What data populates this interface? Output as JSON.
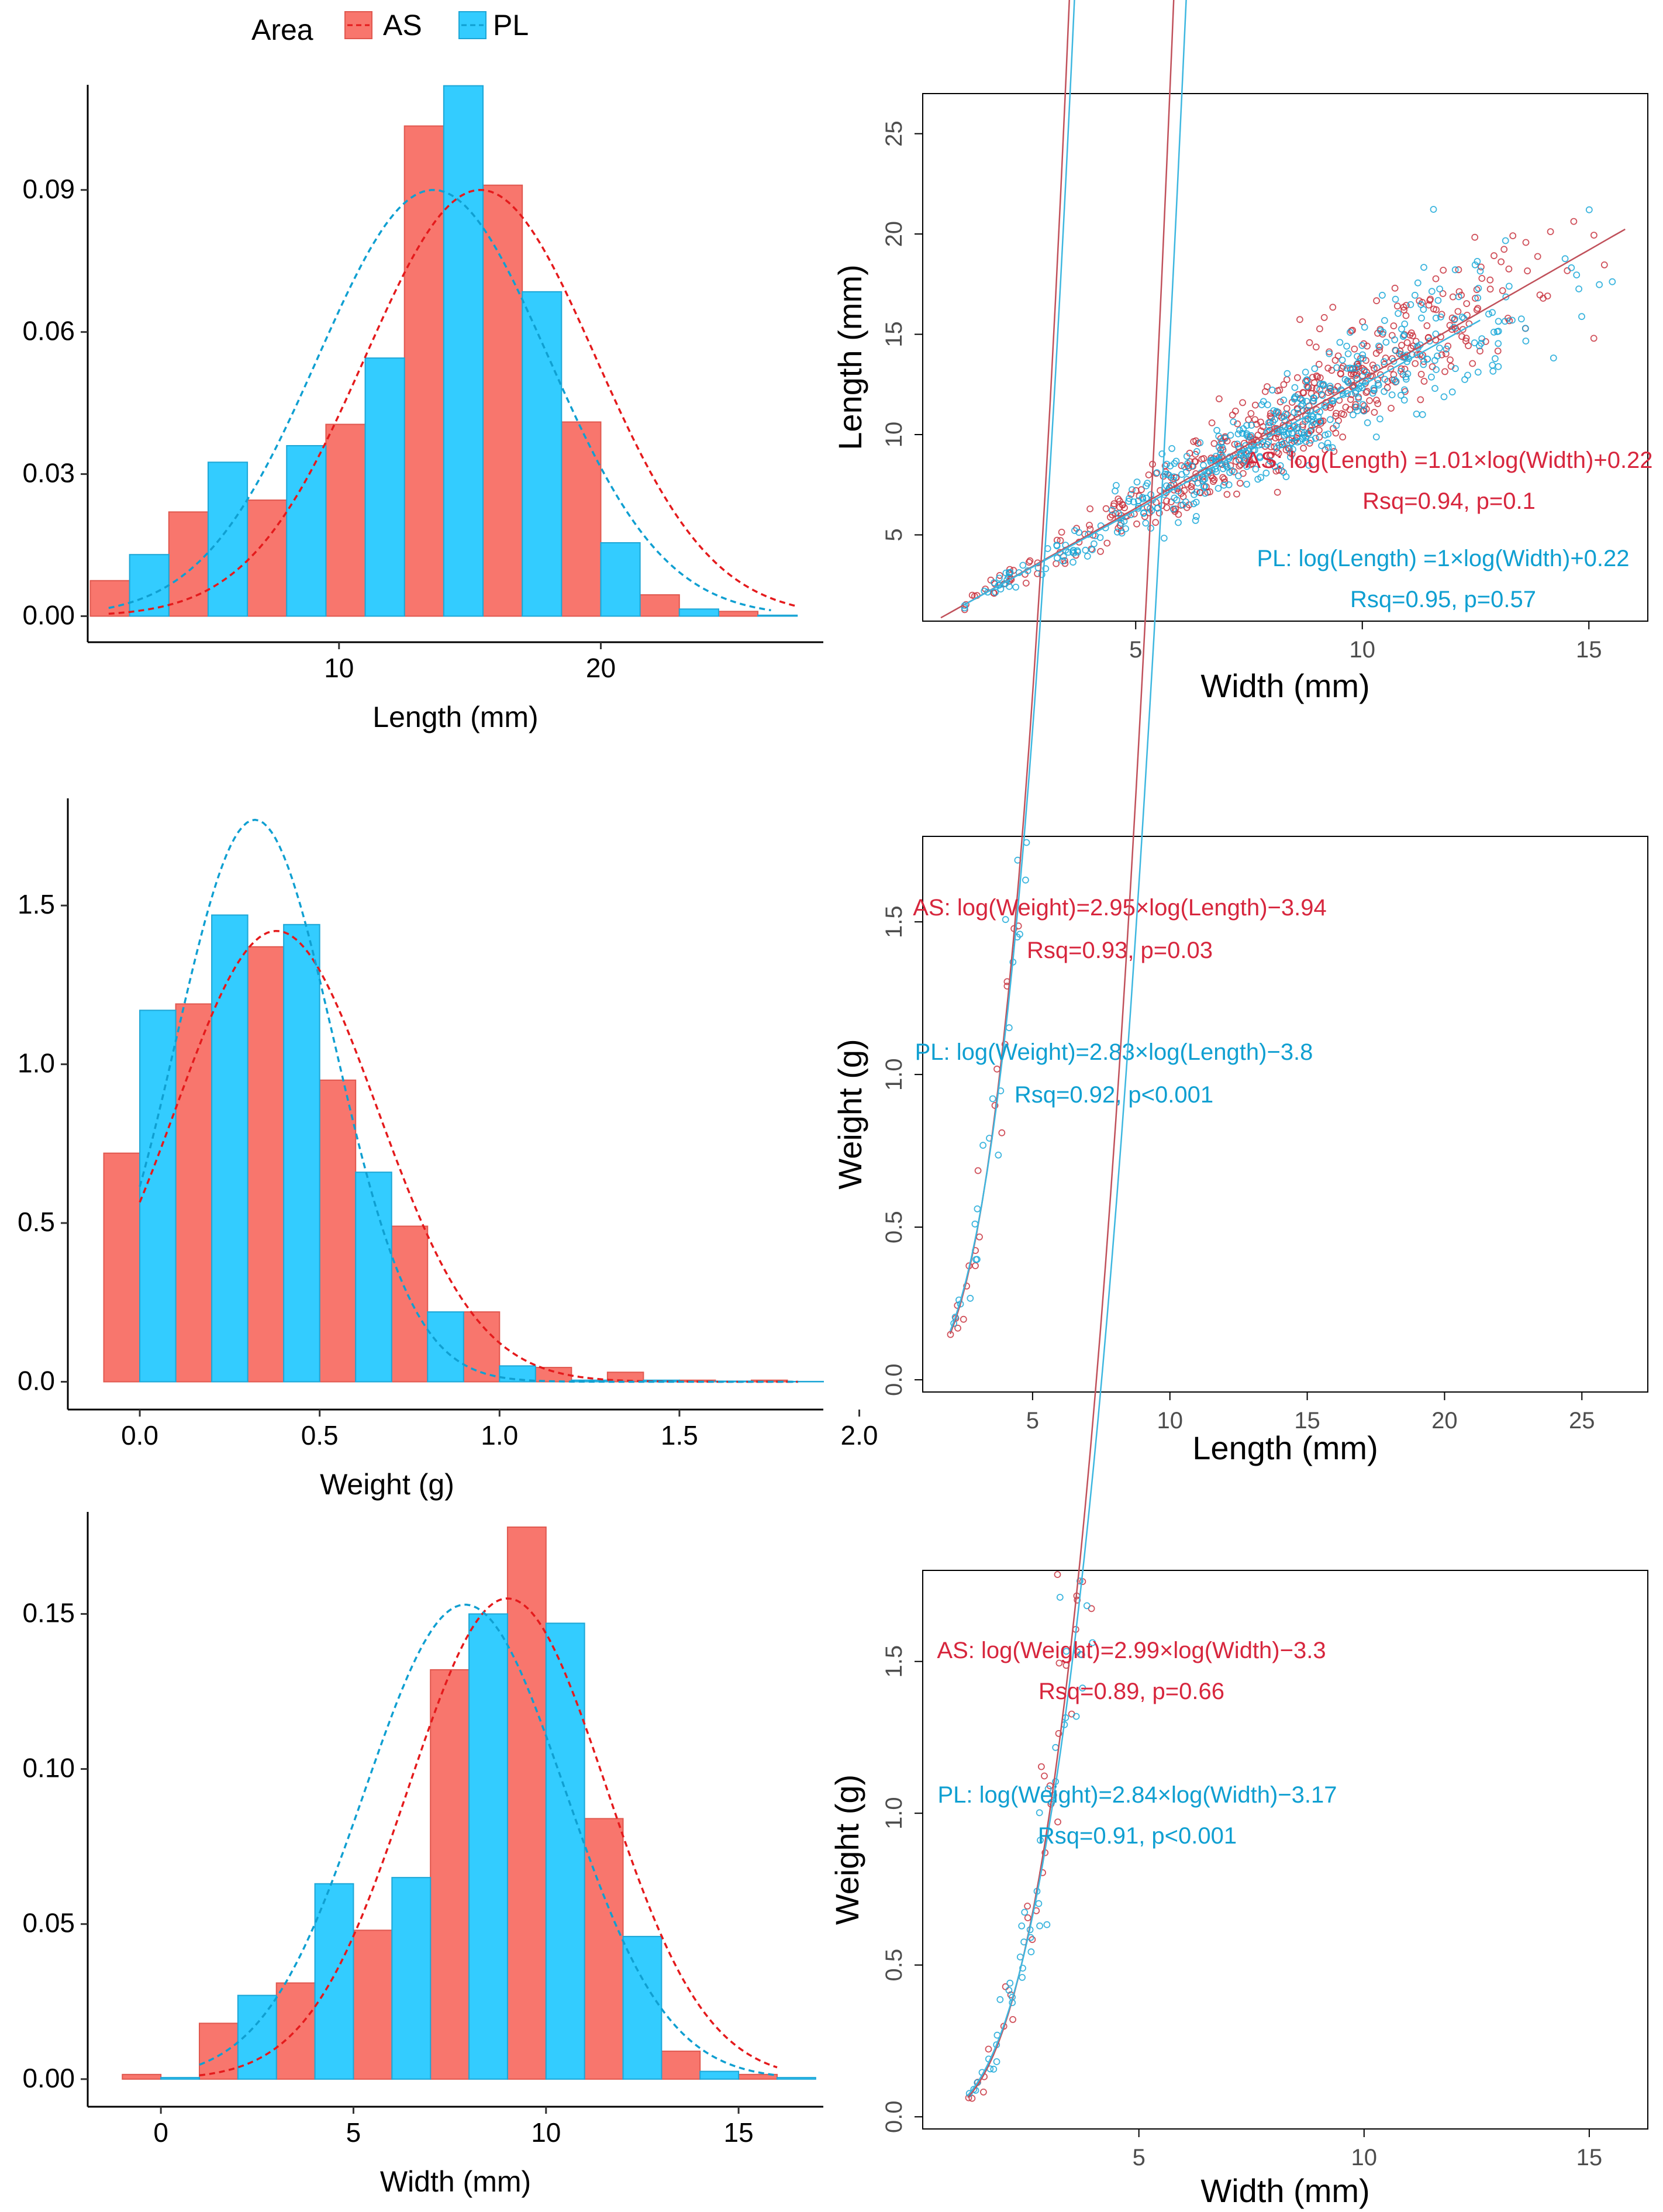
{
  "legend": {
    "title": "Area",
    "items": [
      {
        "key": "AS",
        "label": "AS",
        "fill": "#F8766D",
        "edge": "#E0584F",
        "curve": "#E41A1C"
      },
      {
        "key": "PL",
        "label": "PL",
        "fill": "#33CCFF",
        "edge": "#1DA6D6",
        "curve": "#0F9FD1"
      }
    ]
  },
  "chart_data": [
    {
      "id": "hist-length",
      "type": "bar",
      "title": "",
      "xlabel": "Length (mm)",
      "ylabel": "",
      "xlim": [
        0.4,
        28.5
      ],
      "ylim": [
        -0.0055,
        0.1122
      ],
      "xticks": [
        {
          "v": 10,
          "label": "10"
        },
        {
          "v": 20,
          "label": "20"
        }
      ],
      "yticks": [
        {
          "v": 0,
          "label": "0.00"
        },
        {
          "v": 0.03,
          "label": "0.03"
        },
        {
          "v": 0.06,
          "label": "0.06"
        },
        {
          "v": 0.09,
          "label": "0.09"
        }
      ],
      "bin_width": 3,
      "series": [
        {
          "name": "AS",
          "centers": [
            2,
            5,
            8,
            11,
            14,
            17,
            20,
            23,
            26
          ],
          "values": [
            0.0075,
            0.022,
            0.0245,
            0.0405,
            0.1035,
            0.091,
            0.041,
            0.0045,
            0.001
          ],
          "offset": -0.75
        },
        {
          "name": "PL",
          "centers": [
            2,
            5,
            8,
            11,
            14,
            17,
            20,
            23,
            26
          ],
          "values": [
            0.013,
            0.0325,
            0.036,
            0.0545,
            0.112,
            0.0685,
            0.0155,
            0.0015,
            0.0002
          ],
          "offset": 0.75
        }
      ],
      "curves": [
        {
          "name": "AS",
          "mean": 15.4,
          "sd": 4.41,
          "peak": 0.09,
          "from": 1.2,
          "to": 27.5
        },
        {
          "name": "PL",
          "mean": 13.6,
          "sd": 4.41,
          "peak": 0.09,
          "from": 1.2,
          "to": 26.5
        }
      ]
    },
    {
      "id": "scatter-length-width",
      "type": "scatter",
      "title": "",
      "xlabel": "Width (mm)",
      "ylabel": "Length (mm)",
      "xlim": [
        0.3,
        16.3
      ],
      "ylim": [
        0.7,
        27.0
      ],
      "xticks": [
        {
          "v": 5,
          "label": "5"
        },
        {
          "v": 10,
          "label": "10"
        },
        {
          "v": 15,
          "label": "15"
        }
      ],
      "yticks": [
        {
          "v": 5,
          "label": "5"
        },
        {
          "v": 10,
          "label": "10"
        },
        {
          "v": 15,
          "label": "15"
        },
        {
          "v": 20,
          "label": "20"
        },
        {
          "v": 25,
          "label": "25"
        }
      ],
      "sample": {
        "xmin": 1.2,
        "xmax": 15.7,
        "peak": 9.0,
        "spread": 2.4,
        "n_AS": 520,
        "n_PL": 480,
        "noise": 0.11
      },
      "fits": [
        {
          "name": "AS",
          "a": 1.01,
          "b": 0.22,
          "from": 0.7,
          "to": 15.8
        },
        {
          "name": "PL",
          "a": 1.0,
          "b": 0.22,
          "from": 1.2,
          "to": 12.6
        }
      ],
      "annotations": [
        {
          "series": "AS",
          "lines": [
            "AS: log(Length) =1.01×log(Width)+0.22",
            "Rsq=0.94, p=0.1"
          ]
        },
        {
          "series": "PL",
          "lines": [
            "PL: log(Length) =1×log(Width)+0.22",
            "Rsq=0.95, p=0.57"
          ]
        }
      ]
    },
    {
      "id": "hist-weight",
      "type": "bar",
      "title": "",
      "xlabel": "Weight (g)",
      "ylabel": "",
      "xlim": [
        -0.2,
        1.9
      ],
      "ylim": [
        -0.0875,
        1.8375
      ],
      "xticks": [
        {
          "v": 0,
          "label": "0.0"
        },
        {
          "v": 0.5,
          "label": "0.5"
        },
        {
          "v": 1.0,
          "label": "1.0"
        },
        {
          "v": 1.5,
          "label": "1.5"
        },
        {
          "v": 2.0,
          "label": "2.0"
        }
      ],
      "yticks": [
        {
          "v": 0,
          "label": "0.0"
        },
        {
          "v": 0.5,
          "label": "0.5"
        },
        {
          "v": 1.0,
          "label": "1.0"
        },
        {
          "v": 1.5,
          "label": "1.5"
        }
      ],
      "bin_width": 0.2,
      "series": [
        {
          "name": "AS",
          "centers": [
            0,
            0.2,
            0.4,
            0.6,
            0.8,
            1.0,
            1.2,
            1.4,
            1.6,
            1.8
          ],
          "values": [
            0.72,
            1.19,
            1.37,
            0.95,
            0.49,
            0.22,
            0.045,
            0.03,
            0.005,
            0.005
          ],
          "offset": -0.05
        },
        {
          "name": "PL",
          "centers": [
            0,
            0.2,
            0.4,
            0.6,
            0.8,
            1.0,
            1.2,
            1.4,
            1.6,
            1.8
          ],
          "values": [
            1.17,
            1.47,
            1.44,
            0.66,
            0.22,
            0.05,
            0.005,
            0.005,
            0.002,
            0.001
          ],
          "offset": 0.05
        }
      ],
      "curves": [
        {
          "name": "AS",
          "mean": 0.38,
          "sd": 0.28,
          "peak": 1.42,
          "from": 0.0,
          "to": 1.83
        },
        {
          "name": "PL",
          "mean": 0.32,
          "sd": 0.22,
          "peak": 1.77,
          "from": 0.0,
          "to": 1.83
        }
      ]
    },
    {
      "id": "scatter-weight-length",
      "type": "scatter",
      "title": "",
      "xlabel": "Length (mm)",
      "ylabel": "Weight (g)",
      "xlim": [
        1.0,
        27.4
      ],
      "ylim": [
        -0.04,
        1.78
      ],
      "xticks": [
        {
          "v": 5,
          "label": "5"
        },
        {
          "v": 10,
          "label": "10"
        },
        {
          "v": 15,
          "label": "15"
        },
        {
          "v": 20,
          "label": "20"
        },
        {
          "v": 25,
          "label": "25"
        }
      ],
      "yticks": [
        {
          "v": 0,
          "label": "0.0"
        },
        {
          "v": 0.5,
          "label": "0.5"
        },
        {
          "v": 1.0,
          "label": "1.0"
        },
        {
          "v": 1.5,
          "label": "1.5"
        }
      ],
      "sample": {
        "xmin": 2.0,
        "xmax": 26.5,
        "peak": 15.5,
        "spread": 4.4,
        "n_AS": 520,
        "n_PL": 480,
        "noise": 0.15
      },
      "fits": [
        {
          "name": "AS",
          "a": 2.95,
          "b": -3.94,
          "from": 2.0,
          "to": 25.0
        },
        {
          "name": "PL",
          "a": 2.83,
          "b": -3.8,
          "from": 2.0,
          "to": 25.0
        }
      ],
      "annotations": [
        {
          "series": "AS",
          "lines": [
            "AS: log(Weight)=2.95×log(Length)−3.94",
            "Rsq=0.93, p=0.03"
          ]
        },
        {
          "series": "PL",
          "lines": [
            "PL: log(Weight)=2.83×log(Length)−3.8",
            "Rsq=0.92, p<0.001"
          ]
        }
      ]
    },
    {
      "id": "hist-width",
      "type": "bar",
      "title": "",
      "xlabel": "Width (mm)",
      "ylabel": "",
      "xlim": [
        -1.9,
        17.2
      ],
      "ylim": [
        -0.0089,
        0.1829
      ],
      "xticks": [
        {
          "v": 0,
          "label": "0"
        },
        {
          "v": 5,
          "label": "5"
        },
        {
          "v": 10,
          "label": "10"
        },
        {
          "v": 15,
          "label": "15"
        }
      ],
      "yticks": [
        {
          "v": 0,
          "label": "0.00"
        },
        {
          "v": 0.05,
          "label": "0.05"
        },
        {
          "v": 0.1,
          "label": "0.10"
        },
        {
          "v": 0.15,
          "label": "0.15"
        }
      ],
      "bin_width": 2,
      "series": [
        {
          "name": "AS",
          "centers": [
            0,
            2,
            4,
            6,
            8,
            10,
            12,
            14,
            16
          ],
          "values": [
            0.0015,
            0.018,
            0.031,
            0.048,
            0.132,
            0.178,
            0.084,
            0.009,
            0.0015
          ],
          "offset": -0.5
        },
        {
          "name": "PL",
          "centers": [
            0,
            2,
            4,
            6,
            8,
            10,
            12,
            14,
            16
          ],
          "values": [
            0.0005,
            0.027,
            0.063,
            0.065,
            0.15,
            0.147,
            0.046,
            0.0025,
            0.0005
          ],
          "offset": 0.5
        }
      ],
      "curves": [
        {
          "name": "AS",
          "mean": 9.0,
          "sd": 2.57,
          "peak": 0.155,
          "from": 1.0,
          "to": 16.0
        },
        {
          "name": "PL",
          "mean": 7.9,
          "sd": 2.61,
          "peak": 0.153,
          "from": 1.0,
          "to": 16.0
        }
      ]
    },
    {
      "id": "scatter-weight-width",
      "type": "scatter",
      "title": "",
      "xlabel": "Width (mm)",
      "ylabel": "Weight (g)",
      "xlim": [
        0.2,
        16.3
      ],
      "ylim": [
        -0.04,
        1.8
      ],
      "xticks": [
        {
          "v": 5,
          "label": "5"
        },
        {
          "v": 10,
          "label": "10"
        },
        {
          "v": 15,
          "label": "15"
        }
      ],
      "yticks": [
        {
          "v": 0,
          "label": "0.0"
        },
        {
          "v": 0.5,
          "label": "0.5"
        },
        {
          "v": 1.0,
          "label": "1.0"
        },
        {
          "v": 1.5,
          "label": "1.5"
        }
      ],
      "sample": {
        "xmin": 1.2,
        "xmax": 15.8,
        "peak": 9.0,
        "spread": 2.5,
        "n_AS": 520,
        "n_PL": 480,
        "noise": 0.17
      },
      "fits": [
        {
          "name": "AS",
          "a": 2.99,
          "b": -3.3,
          "from": 1.2,
          "to": 14.8
        },
        {
          "name": "PL",
          "a": 2.84,
          "b": -3.17,
          "from": 1.2,
          "to": 13.6
        }
      ],
      "annotations": [
        {
          "series": "AS",
          "lines": [
            "AS: log(Weight)=2.99×log(Width)−3.3",
            "Rsq=0.89, p=0.66"
          ]
        },
        {
          "series": "PL",
          "lines": [
            "PL: log(Weight)=2.84×log(Width)−3.17",
            "Rsq=0.91, p<0.001"
          ]
        }
      ]
    }
  ]
}
